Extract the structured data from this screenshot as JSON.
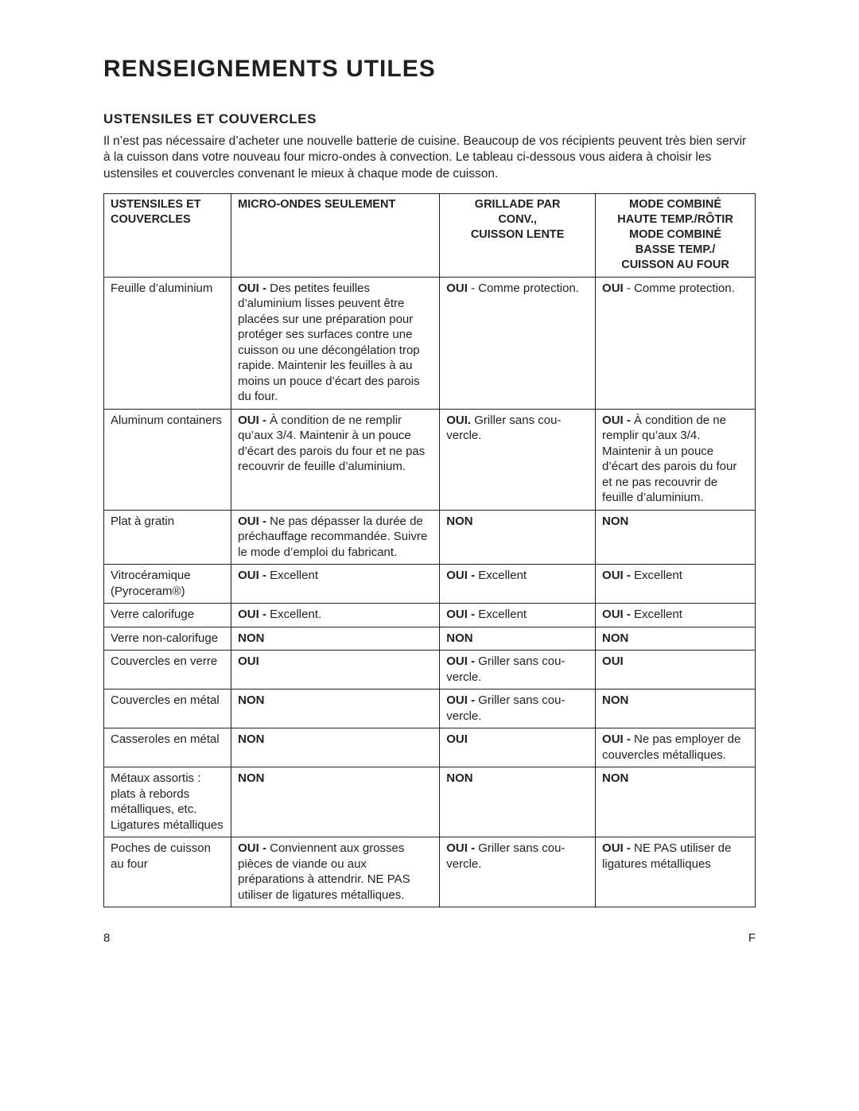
{
  "page_title": "RENSEIGNEMENTS UTILES",
  "section_title": "USTENSILES ET COUVERCLES",
  "intro": "Il n’est pas nécessaire d’acheter une nouvelle batterie de cuisine. Beaucoup de vos récipients peuvent très bien servir à la cuisson dans votre nouveau four micro-ondes à convection. Le tableau ci-dessous vous aidera à choisir les ustensiles et couvercles convenant le mieux à chaque mode de cuisson.",
  "table": {
    "headers": {
      "col0": [
        "USTENSILES ET",
        "COUVERCLES"
      ],
      "col1": [
        "MICRO-ONDES SEULEMENT"
      ],
      "col2": [
        "GRILLADE PAR",
        "CONV.,",
        "CUISSON LENTE"
      ],
      "col3": [
        "MODE COMBINÉ",
        "HAUTE TEMP./RÔTIR",
        "MODE COMBINÉ",
        "BASSE TEMP./",
        "CUISSON AU FOUR"
      ]
    },
    "rows": [
      {
        "c0": [
          {
            "t": "Feuille d’aluminium"
          }
        ],
        "c1": [
          {
            "t": "OUI - ",
            "b": true
          },
          {
            "t": "Des petites feuilles d’aluminium lisses peuvent être placées sur une pré­paration pour protéger ses surfaces contre une cuisson ou une décongélation trop rapide. Maintenir les feuilles à au moins un pouce d’écart des parois du four."
          }
        ],
        "c2": [
          {
            "t": "OUI",
            "b": true
          },
          {
            "t": " - Comme protec­tion."
          }
        ],
        "c3": [
          {
            "t": "OUI",
            "b": true
          },
          {
            "t": " - Comme protec­tion."
          }
        ]
      },
      {
        "c0": [
          {
            "t": "Aluminum containers"
          }
        ],
        "c1": [
          {
            "t": "OUI - ",
            "b": true
          },
          {
            "t": "À condition de ne remplir qu’aux 3/4. Maintenir à un pouce d’écart des parois du four et ne pas recouvrir de feuille d’aluminium."
          }
        ],
        "c2": [
          {
            "t": "OUI.",
            "b": true
          },
          {
            "t": " Griller sans cou­vercle."
          }
        ],
        "c3": [
          {
            "t": "OUI - ",
            "b": true
          },
          {
            "t": "À condition de ne remplir qu’aux 3/4. Maintenir à un pouce d’écart des parois du four et ne pas recouvrir de feuille d’aluminium."
          }
        ]
      },
      {
        "c0": [
          {
            "t": "Plat à gratin"
          }
        ],
        "c1": [
          {
            "t": "OUI - ",
            "b": true
          },
          {
            "t": "Ne pas dépasser la durée de préchauffage recommandée. Suivre le mode d’emploi du fabricant."
          }
        ],
        "c2": [
          {
            "t": "NON",
            "b": true
          }
        ],
        "c3": [
          {
            "t": "NON",
            "b": true
          }
        ]
      },
      {
        "c0": [
          {
            "t": "Vitrocéramique (Pyroceram®)"
          }
        ],
        "c1": [
          {
            "t": "OUI - ",
            "b": true
          },
          {
            "t": "Excellent"
          }
        ],
        "c2": [
          {
            "t": "OUI - ",
            "b": true
          },
          {
            "t": "Excellent"
          }
        ],
        "c3": [
          {
            "t": "OUI - ",
            "b": true
          },
          {
            "t": "Excellent"
          }
        ]
      },
      {
        "c0": [
          {
            "t": "Verre calorifuge"
          }
        ],
        "c1": [
          {
            "t": "OUI - ",
            "b": true
          },
          {
            "t": "Excellent."
          }
        ],
        "c2": [
          {
            "t": "OUI - ",
            "b": true
          },
          {
            "t": "Excellent"
          }
        ],
        "c3": [
          {
            "t": "OUI - ",
            "b": true
          },
          {
            "t": "Excellent"
          }
        ]
      },
      {
        "c0": [
          {
            "t": "Verre non-calori­fuge"
          }
        ],
        "c1": [
          {
            "t": "NON",
            "b": true
          }
        ],
        "c2": [
          {
            "t": "NON",
            "b": true
          }
        ],
        "c3": [
          {
            "t": "NON",
            "b": true
          }
        ]
      },
      {
        "c0": [
          {
            "t": "Couvercles en verre"
          }
        ],
        "c1": [
          {
            "t": "OUI",
            "b": true
          }
        ],
        "c2": [
          {
            "t": "OUI - ",
            "b": true
          },
          {
            "t": "Griller sans cou­vercle."
          }
        ],
        "c3": [
          {
            "t": "OUI",
            "b": true
          }
        ]
      },
      {
        "c0": [
          {
            "t": "Couvercles en métal"
          }
        ],
        "c1": [
          {
            "t": "NON",
            "b": true
          }
        ],
        "c2": [
          {
            "t": "OUI - ",
            "b": true
          },
          {
            "t": "Griller sans cou­vercle."
          }
        ],
        "c3": [
          {
            "t": "NON",
            "b": true
          }
        ]
      },
      {
        "c0": [
          {
            "t": "Casseroles en métal"
          }
        ],
        "c1": [
          {
            "t": "NON",
            "b": true
          }
        ],
        "c2": [
          {
            "t": "OUI",
            "b": true
          }
        ],
        "c3": [
          {
            "t": "OUI - ",
            "b": true
          },
          {
            "t": "Ne pas employer de couvercles mé­talliques."
          }
        ]
      },
      {
        "c0": [
          {
            "t": "Métaux assortis : plats à rebords métalliques, etc. Ligatures mé­talliques"
          }
        ],
        "c1": [
          {
            "t": "NON",
            "b": true
          }
        ],
        "c2": [
          {
            "t": "NON",
            "b": true
          }
        ],
        "c3": [
          {
            "t": "NON",
            "b": true
          }
        ]
      },
      {
        "c0": [
          {
            "t": "Poches de cuisson au four"
          }
        ],
        "c1": [
          {
            "t": "OUI - ",
            "b": true
          },
          {
            "t": "Conviennent aux grosses pièces de viande ou aux préparations à attendrir. NE PAS utiliser de ligatures métalliques."
          }
        ],
        "c2": [
          {
            "t": "OUI - ",
            "b": true
          },
          {
            "t": "Griller sans cou­vercle."
          }
        ],
        "c3": [
          {
            "t": "OUI - ",
            "b": true
          },
          {
            "t": "NE PAS utiliser de ligatures métalliques"
          }
        ]
      }
    ]
  },
  "footer": {
    "page_num": "8",
    "lang_marker": "F"
  }
}
